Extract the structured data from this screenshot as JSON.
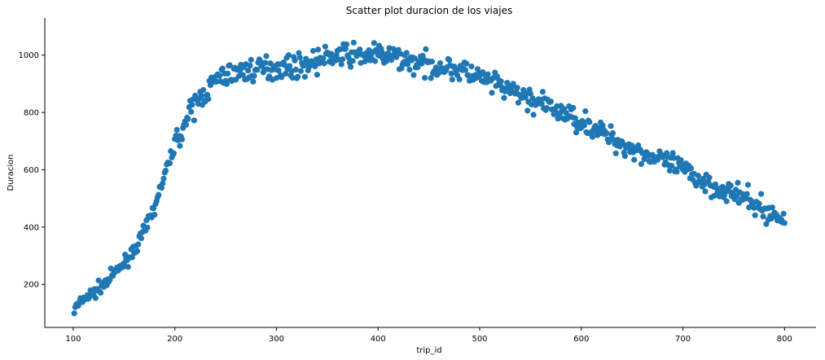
{
  "chart_data": {
    "type": "scatter",
    "title": "Scatter plot duracion de los viajes",
    "xlabel": "trip_id",
    "ylabel": "Duracion",
    "xlim": [
      72,
      831
    ],
    "ylim": [
      50,
      1130
    ],
    "xticks": [
      100,
      200,
      300,
      400,
      500,
      600,
      700,
      800
    ],
    "yticks": [
      200,
      400,
      600,
      800,
      1000
    ],
    "grid": false,
    "legend": "none",
    "marker_color": "#1f77b4",
    "series": [
      {
        "x_start": 101,
        "x_end": 800,
        "step": 1,
        "trend_points": [
          [
            101,
            110
          ],
          [
            110,
            150
          ],
          [
            120,
            170
          ],
          [
            130,
            200
          ],
          [
            140,
            235
          ],
          [
            150,
            275
          ],
          [
            160,
            320
          ],
          [
            170,
            385
          ],
          [
            180,
            470
          ],
          [
            190,
            580
          ],
          [
            200,
            690
          ],
          [
            210,
            760
          ],
          [
            220,
            830
          ],
          [
            230,
            870
          ],
          [
            240,
            910
          ],
          [
            250,
            930
          ],
          [
            260,
            940
          ],
          [
            280,
            950
          ],
          [
            300,
            960
          ],
          [
            320,
            960
          ],
          [
            340,
            980
          ],
          [
            360,
            1000
          ],
          [
            380,
            1000
          ],
          [
            400,
            1000
          ],
          [
            420,
            990
          ],
          [
            440,
            970
          ],
          [
            460,
            960
          ],
          [
            480,
            950
          ],
          [
            500,
            920
          ],
          [
            520,
            890
          ],
          [
            540,
            860
          ],
          [
            560,
            830
          ],
          [
            580,
            800
          ],
          [
            600,
            770
          ],
          [
            620,
            730
          ],
          [
            640,
            690
          ],
          [
            660,
            660
          ],
          [
            680,
            630
          ],
          [
            700,
            600
          ],
          [
            720,
            560
          ],
          [
            740,
            530
          ],
          [
            760,
            500
          ],
          [
            780,
            460
          ],
          [
            800,
            420
          ]
        ],
        "noise_amplitude": 28,
        "seed": 7
      }
    ]
  }
}
